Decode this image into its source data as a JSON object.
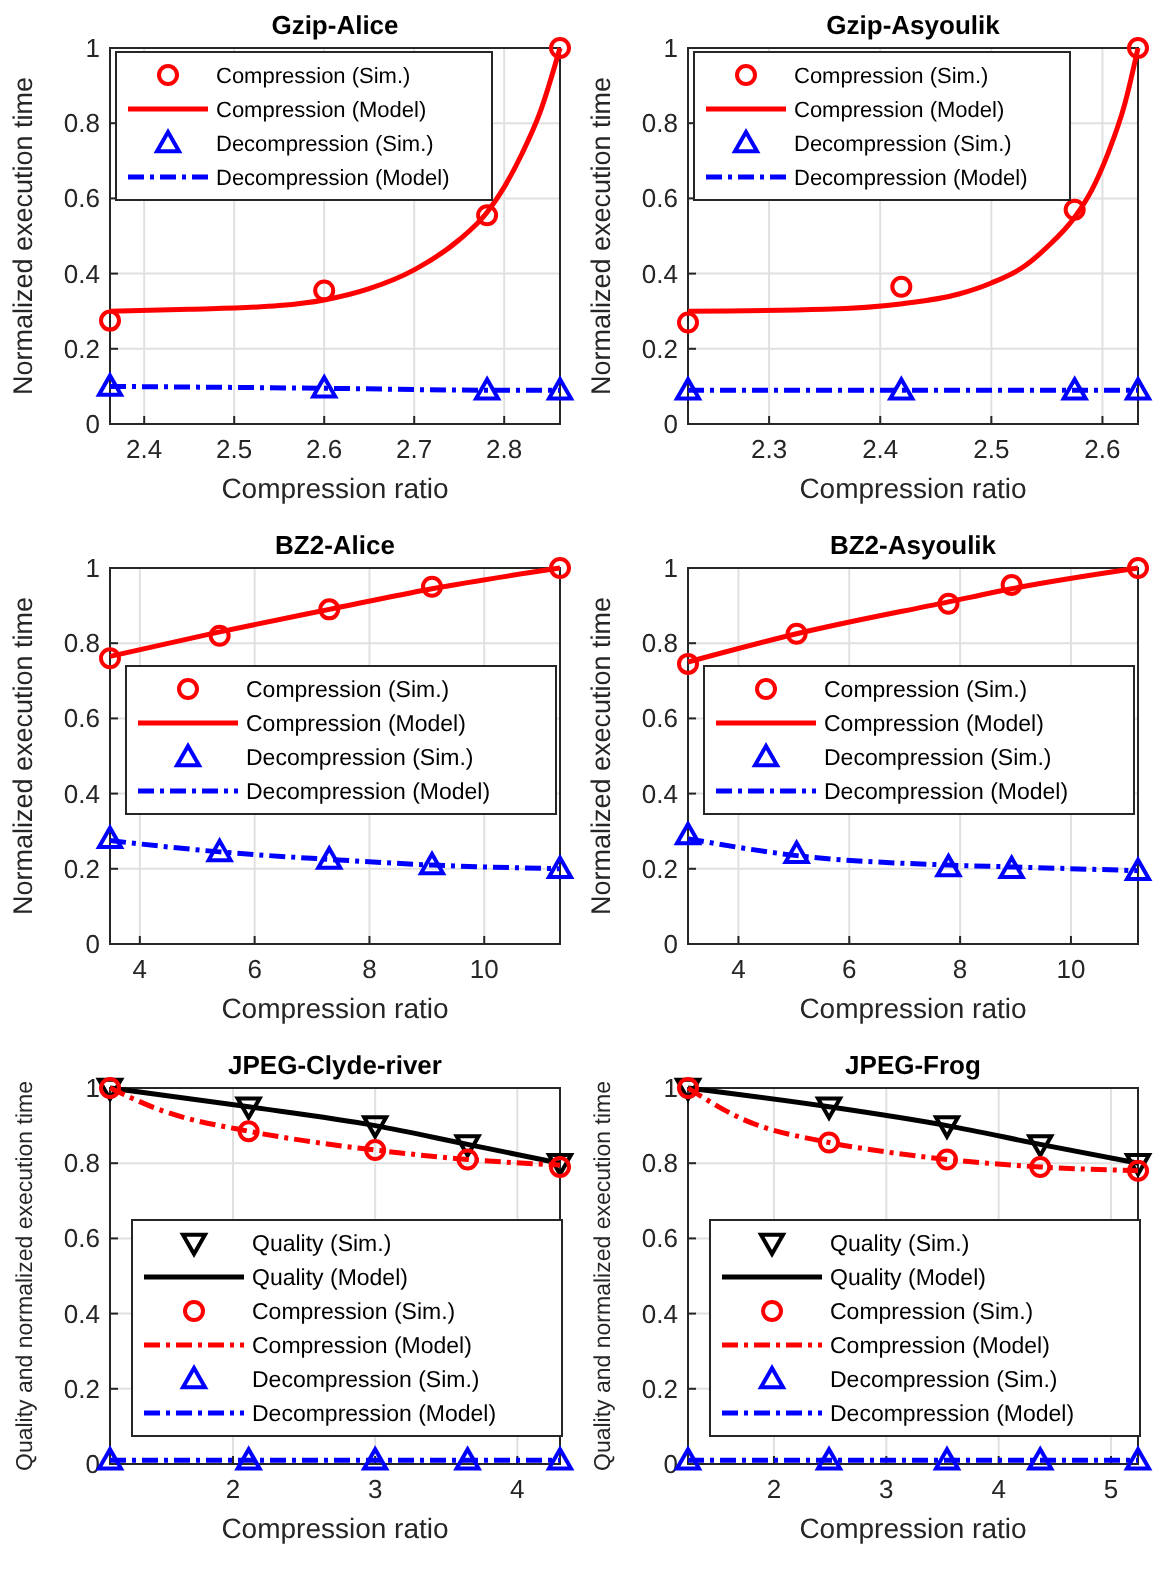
{
  "chart_data": [
    {
      "type": "line",
      "title": "Gzip-Alice",
      "xlabel": "Compression ratio",
      "ylabel": "Normalized execution time",
      "xlim": [
        2.362,
        2.862
      ],
      "xticks": [
        2.4,
        2.5,
        2.6,
        2.7,
        2.8
      ],
      "ylim": [
        0,
        1
      ],
      "yticks": [
        0,
        0.2,
        0.4,
        0.6,
        0.8,
        1
      ],
      "grid": true,
      "legend": "top",
      "series": [
        {
          "name": "Compression (Sim.)",
          "type": "scatter",
          "marker": "circle",
          "color": "#ff0000",
          "x": [
            2.362,
            2.6,
            2.781,
            2.862
          ],
          "values": [
            0.275,
            0.355,
            0.555,
            1.0
          ]
        },
        {
          "name": "Compression (Model)",
          "type": "line",
          "line_style": "solid",
          "color": "#ff0000",
          "x": [
            2.362,
            2.45,
            2.55,
            2.6,
            2.65,
            2.7,
            2.75,
            2.78,
            2.8,
            2.82,
            2.84,
            2.862
          ],
          "values": [
            0.3,
            0.305,
            0.315,
            0.33,
            0.36,
            0.41,
            0.49,
            0.56,
            0.63,
            0.72,
            0.83,
            1.0
          ]
        },
        {
          "name": "Decompression (Sim.)",
          "type": "scatter",
          "marker": "triangle",
          "color": "#0000ff",
          "x": [
            2.362,
            2.6,
            2.781,
            2.862
          ],
          "values": [
            0.1,
            0.095,
            0.09,
            0.09
          ]
        },
        {
          "name": "Decompression (Model)",
          "type": "line",
          "line_style": "dashdot",
          "color": "#0000ff",
          "x": [
            2.362,
            2.6,
            2.781,
            2.862
          ],
          "values": [
            0.1,
            0.095,
            0.09,
            0.09
          ]
        }
      ]
    },
    {
      "type": "line",
      "title": "Gzip-Asyoulik",
      "xlabel": "Compression ratio",
      "ylabel": "Normalized execution time",
      "xlim": [
        2.227,
        2.632
      ],
      "xticks": [
        2.3,
        2.4,
        2.5,
        2.6
      ],
      "ylim": [
        0,
        1
      ],
      "yticks": [
        0,
        0.2,
        0.4,
        0.6,
        0.8,
        1
      ],
      "grid": true,
      "legend": "top",
      "series": [
        {
          "name": "Compression (Sim.)",
          "type": "scatter",
          "marker": "circle",
          "color": "#ff0000",
          "x": [
            2.227,
            2.419,
            2.575,
            2.632
          ],
          "values": [
            0.27,
            0.365,
            0.57,
            1.0
          ]
        },
        {
          "name": "Compression (Model)",
          "type": "line",
          "line_style": "solid",
          "color": "#ff0000",
          "x": [
            2.227,
            2.35,
            2.42,
            2.47,
            2.5,
            2.53,
            2.55,
            2.575,
            2.59,
            2.605,
            2.62,
            2.632
          ],
          "values": [
            0.3,
            0.305,
            0.32,
            0.345,
            0.375,
            0.42,
            0.47,
            0.55,
            0.62,
            0.72,
            0.85,
            1.0
          ]
        },
        {
          "name": "Decompression (Sim.)",
          "type": "scatter",
          "marker": "triangle",
          "color": "#0000ff",
          "x": [
            2.227,
            2.419,
            2.575,
            2.632
          ],
          "values": [
            0.09,
            0.09,
            0.09,
            0.09
          ]
        },
        {
          "name": "Decompression (Model)",
          "type": "line",
          "line_style": "dashdot",
          "color": "#0000ff",
          "x": [
            2.227,
            2.419,
            2.575,
            2.632
          ],
          "values": [
            0.09,
            0.09,
            0.09,
            0.09
          ]
        }
      ]
    },
    {
      "type": "line",
      "title": "BZ2-Alice",
      "xlabel": "Compression ratio",
      "ylabel": "Normalized execution time",
      "xlim": [
        3.48,
        11.32
      ],
      "xticks": [
        4,
        6,
        8,
        10
      ],
      "ylim": [
        0,
        1
      ],
      "yticks": [
        0,
        0.2,
        0.4,
        0.6,
        0.8,
        1
      ],
      "grid": true,
      "legend": "right",
      "series": [
        {
          "name": "Compression (Sim.)",
          "type": "scatter",
          "marker": "circle",
          "color": "#ff0000",
          "x": [
            3.48,
            5.39,
            7.3,
            9.09,
            11.32
          ],
          "values": [
            0.76,
            0.82,
            0.89,
            0.95,
            1.0
          ]
        },
        {
          "name": "Compression (Model)",
          "type": "line",
          "line_style": "solid",
          "color": "#ff0000",
          "x": [
            3.48,
            5.39,
            7.3,
            9.09,
            11.32
          ],
          "values": [
            0.765,
            0.83,
            0.89,
            0.945,
            1.0
          ]
        },
        {
          "name": "Decompression (Sim.)",
          "type": "scatter",
          "marker": "triangle",
          "color": "#0000ff",
          "x": [
            3.48,
            5.39,
            7.3,
            9.09,
            11.32
          ],
          "values": [
            0.28,
            0.245,
            0.225,
            0.21,
            0.2
          ]
        },
        {
          "name": "Decompression (Model)",
          "type": "line",
          "line_style": "dashdot",
          "color": "#0000ff",
          "x": [
            3.48,
            5.39,
            7.3,
            9.09,
            11.32
          ],
          "values": [
            0.275,
            0.245,
            0.225,
            0.21,
            0.2
          ]
        }
      ]
    },
    {
      "type": "line",
      "title": "BZ2-Asyoulik",
      "xlabel": "Compression ratio",
      "ylabel": "Normalized execution time",
      "xlim": [
        3.09,
        11.21
      ],
      "xticks": [
        4,
        6,
        8,
        10
      ],
      "ylim": [
        0,
        1
      ],
      "yticks": [
        0,
        0.2,
        0.4,
        0.6,
        0.8,
        1
      ],
      "grid": true,
      "legend": "right",
      "series": [
        {
          "name": "Compression (Sim.)",
          "type": "scatter",
          "marker": "circle",
          "color": "#ff0000",
          "x": [
            3.09,
            5.05,
            7.79,
            8.93,
            11.21
          ],
          "values": [
            0.745,
            0.825,
            0.905,
            0.955,
            1.0
          ]
        },
        {
          "name": "Compression (Model)",
          "type": "line",
          "line_style": "solid",
          "color": "#ff0000",
          "x": [
            3.09,
            5.05,
            7.79,
            8.93,
            11.21
          ],
          "values": [
            0.75,
            0.825,
            0.91,
            0.945,
            1.0
          ]
        },
        {
          "name": "Decompression (Sim.)",
          "type": "scatter",
          "marker": "triangle",
          "color": "#0000ff",
          "x": [
            3.09,
            5.05,
            7.79,
            8.93,
            11.21
          ],
          "values": [
            0.29,
            0.24,
            0.205,
            0.2,
            0.195
          ]
        },
        {
          "name": "Decompression (Model)",
          "type": "line",
          "line_style": "dashdot",
          "color": "#0000ff",
          "x": [
            3.09,
            5.05,
            7.79,
            8.93,
            11.21
          ],
          "values": [
            0.28,
            0.235,
            0.21,
            0.205,
            0.195
          ]
        }
      ]
    },
    {
      "type": "line",
      "title": "JPEG-Clyde-river",
      "xlabel": "Compression ratio",
      "ylabel": "Quality and normalized execution time",
      "xlim": [
        1.135,
        4.3
      ],
      "xticks": [
        2,
        3,
        4
      ],
      "ylim": [
        0,
        1
      ],
      "yticks": [
        0,
        0.2,
        0.4,
        0.6,
        0.8,
        1
      ],
      "grid": true,
      "legend": "bottom",
      "series": [
        {
          "name": "Quality (Sim.)",
          "type": "scatter",
          "marker": "triangle-down",
          "color": "#000000",
          "x": [
            1.135,
            2.11,
            3.0,
            3.65,
            4.3
          ],
          "values": [
            1.0,
            0.95,
            0.9,
            0.85,
            0.8
          ]
        },
        {
          "name": "Quality (Model)",
          "type": "line",
          "line_style": "solid",
          "color": "#000000",
          "x": [
            1.135,
            2.11,
            3.0,
            3.65,
            4.3
          ],
          "values": [
            1.0,
            0.95,
            0.9,
            0.85,
            0.8
          ]
        },
        {
          "name": "Compression (Sim.)",
          "type": "scatter",
          "marker": "circle",
          "color": "#ff0000",
          "x": [
            1.135,
            2.11,
            3.0,
            3.65,
            4.3
          ],
          "values": [
            1.0,
            0.885,
            0.835,
            0.81,
            0.79
          ]
        },
        {
          "name": "Compression (Model)",
          "type": "line",
          "line_style": "dashdot",
          "color": "#ff0000",
          "x": [
            1.135,
            1.5,
            2.11,
            2.5,
            3.0,
            3.65,
            4.3
          ],
          "values": [
            1.0,
            0.94,
            0.885,
            0.86,
            0.835,
            0.81,
            0.795
          ]
        },
        {
          "name": "Decompression (Sim.)",
          "type": "scatter",
          "marker": "triangle",
          "color": "#0000ff",
          "x": [
            1.135,
            2.11,
            3.0,
            3.65,
            4.3
          ],
          "values": [
            0.01,
            0.01,
            0.01,
            0.01,
            0.01
          ]
        },
        {
          "name": "Decompression (Model)",
          "type": "line",
          "line_style": "dashdot",
          "color": "#0000ff",
          "x": [
            1.135,
            2.11,
            3.0,
            3.65,
            4.3
          ],
          "values": [
            0.01,
            0.01,
            0.01,
            0.01,
            0.01
          ]
        }
      ]
    },
    {
      "type": "line",
      "title": "JPEG-Frog",
      "xlabel": "Compression ratio",
      "ylabel": "Quality and normalized execution time",
      "xlim": [
        1.235,
        5.24
      ],
      "xticks": [
        2,
        3,
        4,
        5
      ],
      "ylim": [
        0,
        1
      ],
      "yticks": [
        0,
        0.2,
        0.4,
        0.6,
        0.8,
        1
      ],
      "grid": true,
      "legend": "bottom",
      "series": [
        {
          "name": "Quality (Sim.)",
          "type": "scatter",
          "marker": "triangle-down",
          "color": "#000000",
          "x": [
            1.235,
            2.49,
            3.54,
            4.37,
            5.24
          ],
          "values": [
            1.0,
            0.95,
            0.9,
            0.85,
            0.8
          ]
        },
        {
          "name": "Quality (Model)",
          "type": "line",
          "line_style": "solid",
          "color": "#000000",
          "x": [
            1.235,
            2.49,
            3.54,
            4.37,
            5.24
          ],
          "values": [
            1.0,
            0.95,
            0.9,
            0.85,
            0.8
          ]
        },
        {
          "name": "Compression (Sim.)",
          "type": "scatter",
          "marker": "circle",
          "color": "#ff0000",
          "x": [
            1.235,
            2.49,
            3.54,
            4.37,
            5.24
          ],
          "values": [
            1.0,
            0.855,
            0.81,
            0.79,
            0.78
          ]
        },
        {
          "name": "Compression (Model)",
          "type": "line",
          "line_style": "dashdot",
          "color": "#ff0000",
          "x": [
            1.235,
            1.7,
            2.49,
            3.0,
            3.54,
            4.37,
            5.24
          ],
          "values": [
            1.0,
            0.92,
            0.855,
            0.83,
            0.81,
            0.79,
            0.78
          ]
        },
        {
          "name": "Decompression (Sim.)",
          "type": "scatter",
          "marker": "triangle",
          "color": "#0000ff",
          "x": [
            1.235,
            2.49,
            3.54,
            4.37,
            5.24
          ],
          "values": [
            0.01,
            0.01,
            0.01,
            0.01,
            0.01
          ]
        },
        {
          "name": "Decompression (Model)",
          "type": "line",
          "line_style": "dashdot",
          "color": "#0000ff",
          "x": [
            1.235,
            2.49,
            3.54,
            4.37,
            5.24
          ],
          "values": [
            0.01,
            0.01,
            0.01,
            0.01,
            0.01
          ]
        }
      ]
    }
  ]
}
